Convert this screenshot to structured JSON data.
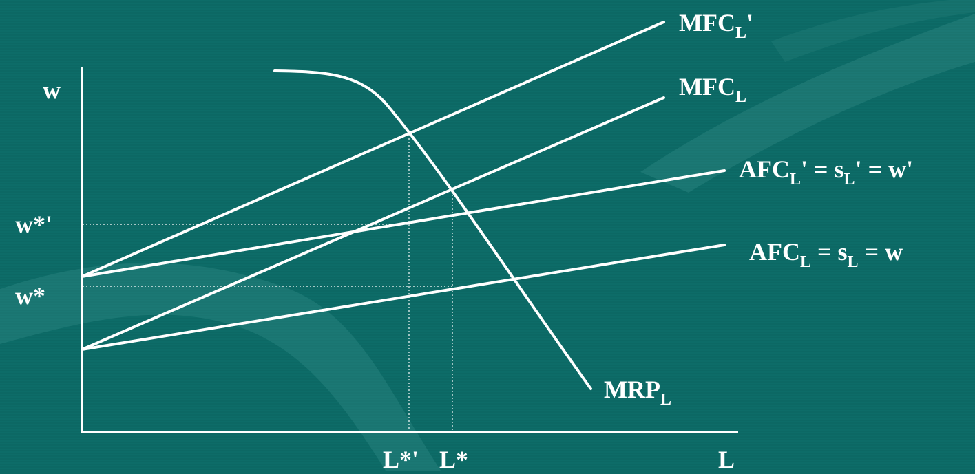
{
  "axes": {
    "y_label": "w",
    "x_label": "L"
  },
  "ticks": {
    "w_star_prime": "w*'",
    "w_star": "w*",
    "L_star_prime": "L*'",
    "L_star": "L*"
  },
  "curves": {
    "mfc_prime": {
      "main": "MFC",
      "sub": "L",
      "suffix": "'"
    },
    "mfc": {
      "main": "MFC",
      "sub": "L"
    },
    "afc_prime": {
      "part1": "AFC",
      "sub1": "L",
      "part2": "' = s",
      "sub2": "L",
      "part3": "' = w'"
    },
    "afc": {
      "part1": "AFC",
      "sub1": "L",
      "part2": " = s",
      "sub2": "L",
      "part3": " = w"
    },
    "mrp": {
      "main": "MRP",
      "sub": "L"
    }
  },
  "colors": {
    "background": "#0c6864",
    "line": "#ffffff"
  }
}
